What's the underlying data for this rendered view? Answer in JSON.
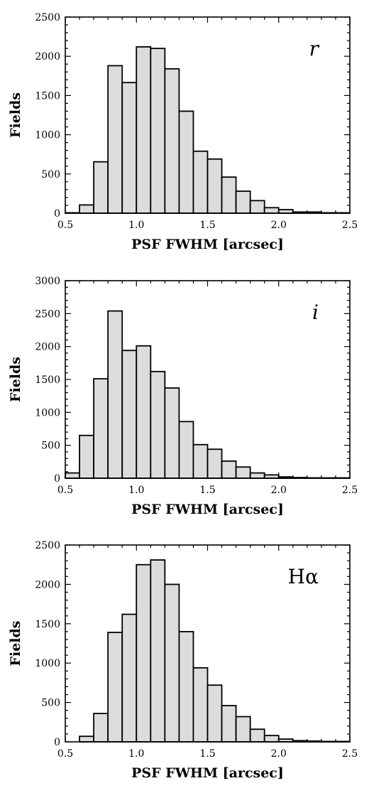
{
  "chart_data": [
    {
      "type": "bar",
      "panel_label": "r",
      "label_italic": true,
      "xlabel": "PSF FWHM [arcsec]",
      "ylabel": "Fields",
      "xlim": [
        0.5,
        2.5
      ],
      "ylim": [
        0,
        2500
      ],
      "xticks": [
        "0.5",
        "1.0",
        "1.5",
        "2.0",
        "2.5"
      ],
      "yticks": [
        "0",
        "500",
        "1000",
        "1500",
        "2000",
        "2500"
      ],
      "bin_width": 0.1,
      "bin_starts": [
        0.5,
        0.6,
        0.7,
        0.8,
        0.9,
        1.0,
        1.1,
        1.2,
        1.3,
        1.4,
        1.5,
        1.6,
        1.7,
        1.8,
        1.9,
        2.0,
        2.1,
        2.2,
        2.3,
        2.4
      ],
      "values": [
        5,
        105,
        655,
        1880,
        1665,
        2120,
        2100,
        1840,
        1300,
        790,
        690,
        460,
        280,
        160,
        70,
        45,
        15,
        15,
        5,
        5
      ]
    },
    {
      "type": "bar",
      "panel_label": "i",
      "label_italic": true,
      "xlabel": "PSF FWHM [arcsec]",
      "ylabel": "Fields",
      "xlim": [
        0.5,
        2.5
      ],
      "ylim": [
        0,
        3000
      ],
      "xticks": [
        "0.5",
        "1.0",
        "1.5",
        "2.0",
        "2.5"
      ],
      "yticks": [
        "0",
        "500",
        "1000",
        "1500",
        "2000",
        "2500",
        "3000"
      ],
      "bin_width": 0.1,
      "bin_starts": [
        0.5,
        0.6,
        0.7,
        0.8,
        0.9,
        1.0,
        1.1,
        1.2,
        1.3,
        1.4,
        1.5,
        1.6,
        1.7,
        1.8,
        1.9,
        2.0,
        2.1,
        2.2,
        2.3,
        2.4
      ],
      "values": [
        80,
        650,
        1510,
        2540,
        1940,
        2010,
        1620,
        1370,
        860,
        510,
        440,
        260,
        170,
        80,
        50,
        20,
        10,
        5,
        5,
        5
      ]
    },
    {
      "type": "bar",
      "panel_label": "Hα",
      "label_italic": false,
      "xlabel": "PSF FWHM [arcsec]",
      "ylabel": "Fields",
      "xlim": [
        0.5,
        2.5
      ],
      "ylim": [
        0,
        2500
      ],
      "xticks": [
        "0.5",
        "1.0",
        "1.5",
        "2.0",
        "2.5"
      ],
      "yticks": [
        "0",
        "500",
        "1000",
        "1500",
        "2000",
        "2500"
      ],
      "bin_width": 0.1,
      "bin_starts": [
        0.5,
        0.6,
        0.7,
        0.8,
        0.9,
        1.0,
        1.1,
        1.2,
        1.3,
        1.4,
        1.5,
        1.6,
        1.7,
        1.8,
        1.9,
        2.0,
        2.1,
        2.2,
        2.3,
        2.4
      ],
      "values": [
        0,
        70,
        360,
        1390,
        1620,
        2250,
        2310,
        2000,
        1400,
        940,
        720,
        460,
        320,
        160,
        80,
        35,
        15,
        10,
        5,
        5
      ]
    }
  ]
}
